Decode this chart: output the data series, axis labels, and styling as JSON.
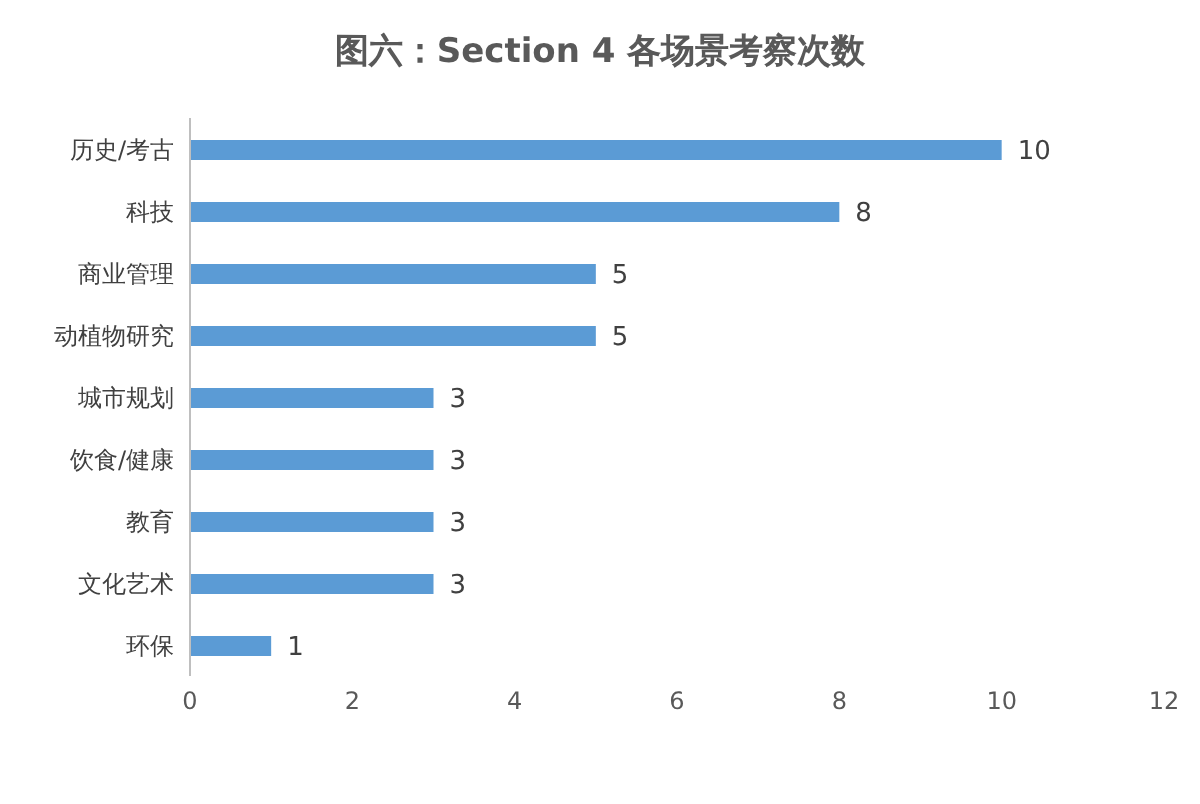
{
  "chart_data": {
    "type": "bar",
    "orientation": "horizontal",
    "title": "图六：Section 4 各场景考察次数",
    "categories": [
      "历史/考古",
      "科技",
      "商业管理",
      "动植物研究",
      "城市规划",
      "饮食/健康",
      "教育",
      "文化艺术",
      "环保"
    ],
    "values": [
      10,
      8,
      5,
      5,
      3,
      3,
      3,
      3,
      1
    ],
    "color": "#5b9bd5",
    "xlim": [
      0,
      12
    ],
    "xticks": [
      0,
      2,
      4,
      6,
      8,
      10,
      12
    ],
    "data_labels": true
  }
}
